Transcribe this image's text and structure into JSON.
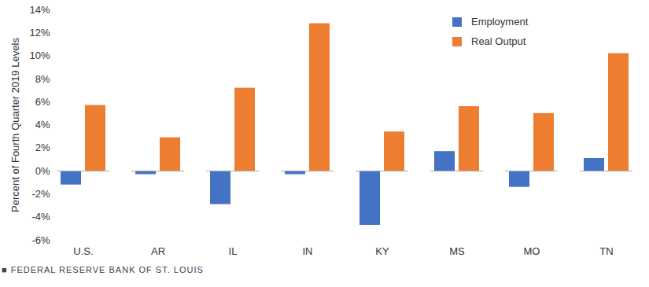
{
  "chart_data": {
    "type": "bar",
    "categories": [
      "U.S.",
      "AR",
      "IL",
      "IN",
      "KY",
      "MS",
      "MO",
      "TN"
    ],
    "series": [
      {
        "name": "Employment",
        "color": "#4472c4",
        "values": [
          -1.2,
          -0.3,
          -2.9,
          -0.3,
          -4.7,
          1.7,
          -1.4,
          1.1
        ]
      },
      {
        "name": "Real Output",
        "color": "#ed7d31",
        "values": [
          5.7,
          2.9,
          7.2,
          12.8,
          3.4,
          5.6,
          5.0,
          10.2
        ]
      }
    ],
    "y_label": "Percent of Fourth Quarter 2019 Levels",
    "ylim": [
      -6,
      14
    ],
    "yticks": [
      {
        "value": -6,
        "label": "-6%"
      },
      {
        "value": -4,
        "label": "-4%"
      },
      {
        "value": -2,
        "label": "-2%"
      },
      {
        "value": 0,
        "label": "0%"
      },
      {
        "value": 2,
        "label": "2%"
      },
      {
        "value": 4,
        "label": "4%"
      },
      {
        "value": 6,
        "label": "6%"
      },
      {
        "value": 8,
        "label": "8%"
      },
      {
        "value": 10,
        "label": "10%"
      },
      {
        "value": 12,
        "label": "12%"
      },
      {
        "value": 14,
        "label": "14%"
      }
    ],
    "grid": false,
    "legend": "top-right",
    "source": "■ FEDERAL RESERVE BANK OF ST. LOUIS"
  }
}
